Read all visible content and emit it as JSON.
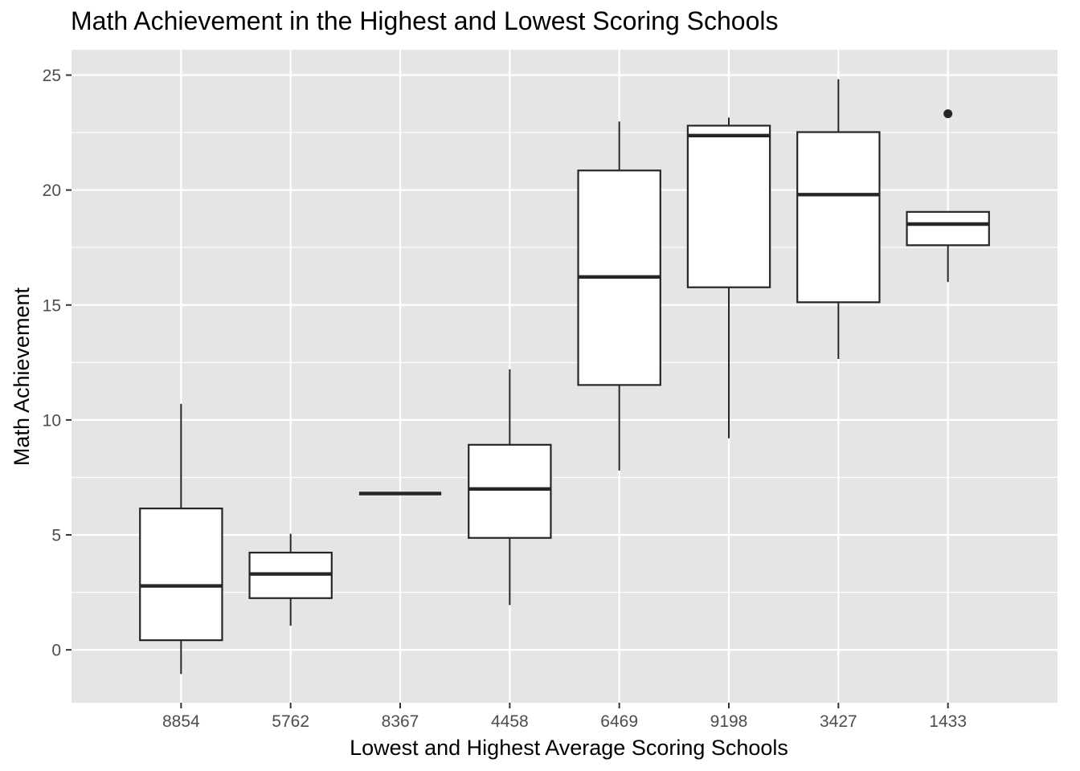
{
  "chart_data": {
    "type": "boxplot",
    "title": "Math Achievement in the Highest and Lowest Scoring Schools",
    "xlabel": "Lowest and Highest Average Scoring Schools",
    "ylabel": "Math Achievement",
    "ylim": [
      -2.3,
      26.1
    ],
    "y_ticks": [
      0,
      5,
      10,
      15,
      20,
      25
    ],
    "grid": true,
    "categories": [
      "8854",
      "5762",
      "8367",
      "4458",
      "6469",
      "9198",
      "3427",
      "1433"
    ],
    "boxes": [
      {
        "category": "8854",
        "whisker_low": -1.05,
        "q1": 0.42,
        "median": 2.78,
        "q3": 6.15,
        "whisker_high": 10.7,
        "outliers": []
      },
      {
        "category": "5762",
        "whisker_low": 1.05,
        "q1": 2.25,
        "median": 3.3,
        "q3": 4.23,
        "whisker_high": 5.05,
        "outliers": []
      },
      {
        "category": "8367",
        "whisker_low": 6.8,
        "q1": 6.8,
        "median": 6.8,
        "q3": 6.8,
        "whisker_high": 6.8,
        "outliers": []
      },
      {
        "category": "4458",
        "whisker_low": 1.95,
        "q1": 4.87,
        "median": 7.0,
        "q3": 8.92,
        "whisker_high": 12.2,
        "outliers": []
      },
      {
        "category": "6469",
        "whisker_low": 7.8,
        "q1": 11.52,
        "median": 16.22,
        "q3": 20.85,
        "whisker_high": 22.98,
        "outliers": []
      },
      {
        "category": "9198",
        "whisker_low": 9.2,
        "q1": 15.77,
        "median": 22.37,
        "q3": 22.8,
        "whisker_high": 23.15,
        "outliers": []
      },
      {
        "category": "3427",
        "whisker_low": 12.65,
        "q1": 15.12,
        "median": 19.8,
        "q3": 22.52,
        "whisker_high": 24.82,
        "outliers": []
      },
      {
        "category": "1433",
        "whisker_low": 16.0,
        "q1": 17.6,
        "median": 18.52,
        "q3": 19.05,
        "whisker_high": 19.05,
        "outliers": [
          23.32
        ]
      }
    ],
    "colors": {
      "panel_background": "#e5e5e5",
      "grid": "#ffffff",
      "box_fill": "#ffffff",
      "box_stroke": "#262626",
      "tick_text": "#4d4d4d"
    }
  }
}
